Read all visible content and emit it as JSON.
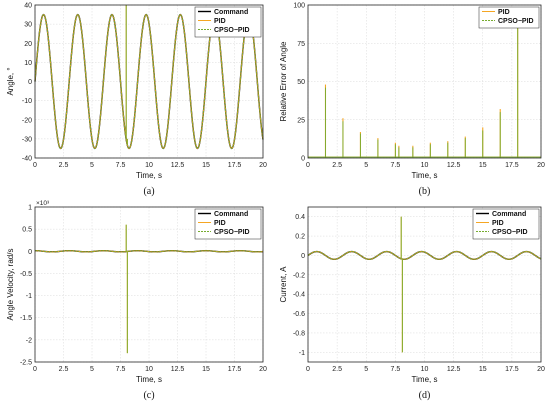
{
  "chart_data": [
    {
      "type": "line",
      "caption": "(a)",
      "xlabel": "Time, s",
      "ylabel": "Angle, °",
      "xlim": [
        0,
        20
      ],
      "ylim": [
        -40,
        40
      ],
      "xticks": [
        "0",
        "2.5",
        "5",
        "7.5",
        "10",
        "12.5",
        "15",
        "17.5",
        "20"
      ],
      "yticks": [
        "-40",
        "-30",
        "-20",
        "-10",
        "0",
        "10",
        "20",
        "30",
        "40"
      ],
      "legend": [
        "Command",
        "PID",
        "CPSO−PID"
      ],
      "legend_position": "top-right",
      "series": [
        {
          "name": "Command",
          "color": "#000000",
          "function": "35*sin(2*pi*t/3)"
        },
        {
          "name": "PID",
          "color": "#f5a623",
          "function": "35*sin(2*pi*t/3)",
          "spikes": [
            {
              "x": 8.0,
              "y": 70
            },
            {
              "x": 8.1,
              "y": -30
            }
          ]
        },
        {
          "name": "CPSO−PID",
          "color": "#77ac30",
          "function": "35*sin(2*pi*t/3)",
          "spikes": [
            {
              "x": 8.0,
              "y": 70
            },
            {
              "x": 8.1,
              "y": -30
            }
          ]
        }
      ],
      "grid": true
    },
    {
      "type": "line",
      "caption": "(b)",
      "xlabel": "Time, s",
      "ylabel": "Relative Error of Angle",
      "xlim": [
        0,
        20
      ],
      "ylim": [
        0,
        100
      ],
      "xticks": [
        "0",
        "2.5",
        "5",
        "7.5",
        "10",
        "12.5",
        "15",
        "17.5",
        "20"
      ],
      "yticks": [
        "0",
        "25",
        "50",
        "75",
        "100"
      ],
      "legend": [
        "PID",
        "CPSO−PID"
      ],
      "legend_position": "top-right",
      "series": [
        {
          "name": "PID",
          "color": "#f5a623",
          "spikes": [
            {
              "x": 1.5,
              "y": 48
            },
            {
              "x": 3.0,
              "y": 26
            },
            {
              "x": 4.5,
              "y": 17
            },
            {
              "x": 6.0,
              "y": 13
            },
            {
              "x": 7.5,
              "y": 10
            },
            {
              "x": 7.8,
              "y": 8
            },
            {
              "x": 9.0,
              "y": 8
            },
            {
              "x": 10.5,
              "y": 10
            },
            {
              "x": 12.0,
              "y": 11
            },
            {
              "x": 13.5,
              "y": 14
            },
            {
              "x": 15.0,
              "y": 20
            },
            {
              "x": 16.5,
              "y": 32
            },
            {
              "x": 18.0,
              "y": 92
            }
          ]
        },
        {
          "name": "CPSO−PID",
          "color": "#77ac30",
          "spikes": [
            {
              "x": 1.5,
              "y": 46
            },
            {
              "x": 3.0,
              "y": 24
            },
            {
              "x": 4.5,
              "y": 16
            },
            {
              "x": 6.0,
              "y": 12
            },
            {
              "x": 7.5,
              "y": 9
            },
            {
              "x": 7.8,
              "y": 7
            },
            {
              "x": 9.0,
              "y": 7
            },
            {
              "x": 10.5,
              "y": 9
            },
            {
              "x": 12.0,
              "y": 10
            },
            {
              "x": 13.5,
              "y": 13
            },
            {
              "x": 15.0,
              "y": 18
            },
            {
              "x": 16.5,
              "y": 30
            },
            {
              "x": 18.0,
              "y": 88
            }
          ]
        }
      ],
      "grid": true
    },
    {
      "type": "line",
      "caption": "(c)",
      "xlabel": "Time, s",
      "ylabel": "Angle Velocity, rad/s",
      "y_multiplier": "×10³",
      "xlim": [
        0,
        20
      ],
      "ylim": [
        -2.5,
        1
      ],
      "xticks": [
        "0",
        "2.5",
        "5",
        "7.5",
        "10",
        "12.5",
        "15",
        "17.5",
        "20"
      ],
      "yticks": [
        "-2.5",
        "-2",
        "-1.5",
        "-1",
        "-0.5",
        "0",
        "0.5",
        "1"
      ],
      "legend": [
        "Command",
        "PID",
        "CPSO−PID"
      ],
      "legend_position": "top-right",
      "series": [
        {
          "name": "Command",
          "color": "#000000",
          "function": "0.013*cos(2*pi*t/3)"
        },
        {
          "name": "PID",
          "color": "#f5a623",
          "function": "0.013*cos(2*pi*t/3)",
          "spikes": [
            {
              "x": 8.0,
              "y": 0.6
            },
            {
              "x": 8.1,
              "y": -2.3
            }
          ]
        },
        {
          "name": "CPSO−PID",
          "color": "#77ac30",
          "function": "0.013*cos(2*pi*t/3)",
          "spikes": [
            {
              "x": 8.0,
              "y": 0.6
            },
            {
              "x": 8.1,
              "y": -2.3
            }
          ]
        }
      ],
      "grid": true
    },
    {
      "type": "line",
      "caption": "(d)",
      "xlabel": "Time, s",
      "ylabel": "Current, A",
      "xlim": [
        0,
        20
      ],
      "ylim": [
        -1.1,
        0.5
      ],
      "xticks": [
        "0",
        "2.5",
        "5",
        "7.5",
        "10",
        "12.5",
        "15",
        "17.5",
        "20"
      ],
      "yticks": [
        "-1",
        "-0.8",
        "-0.6",
        "-0.4",
        "-0.2",
        "0",
        "0.2",
        "0.4"
      ],
      "legend": [
        "Command",
        "PID",
        "CPSO−PID"
      ],
      "legend_position": "top-right",
      "series": [
        {
          "name": "Command",
          "color": "#000000",
          "function": "0.04*sin(2*pi*t/3)"
        },
        {
          "name": "PID",
          "color": "#f5a623",
          "function": "0.04*sin(2*pi*t/3)",
          "spikes": [
            {
              "x": 8.0,
              "y": 0.4
            },
            {
              "x": 8.1,
              "y": -1.0
            }
          ]
        },
        {
          "name": "CPSO−PID",
          "color": "#77ac30",
          "function": "0.04*sin(2*pi*t/3)",
          "spikes": [
            {
              "x": 8.0,
              "y": 0.4
            },
            {
              "x": 8.1,
              "y": -1.0
            }
          ]
        }
      ],
      "grid": true
    }
  ]
}
